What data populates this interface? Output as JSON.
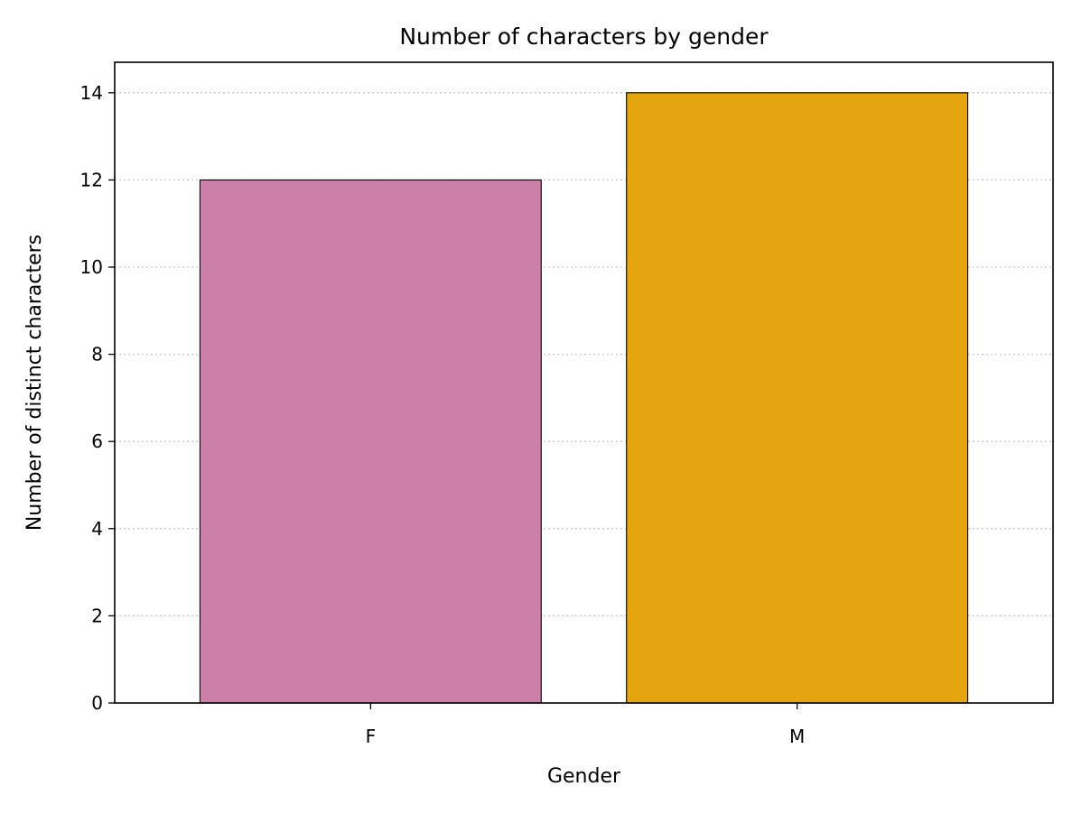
{
  "chart_data": {
    "type": "bar",
    "title": "Number of characters by gender",
    "xlabel": "Gender",
    "ylabel": "Number of distinct characters",
    "categories": [
      "F",
      "M"
    ],
    "values": [
      12,
      14
    ],
    "colors": [
      "#cc7fa9",
      "#e5a50f"
    ],
    "edge_color": "#000000",
    "ylim": [
      0,
      14.7
    ],
    "yticks": [
      0,
      2,
      4,
      6,
      8,
      10,
      12,
      14
    ],
    "grid": {
      "axis": "y",
      "style": "dotted",
      "color": "#c8c8c8"
    },
    "legend": "none"
  }
}
